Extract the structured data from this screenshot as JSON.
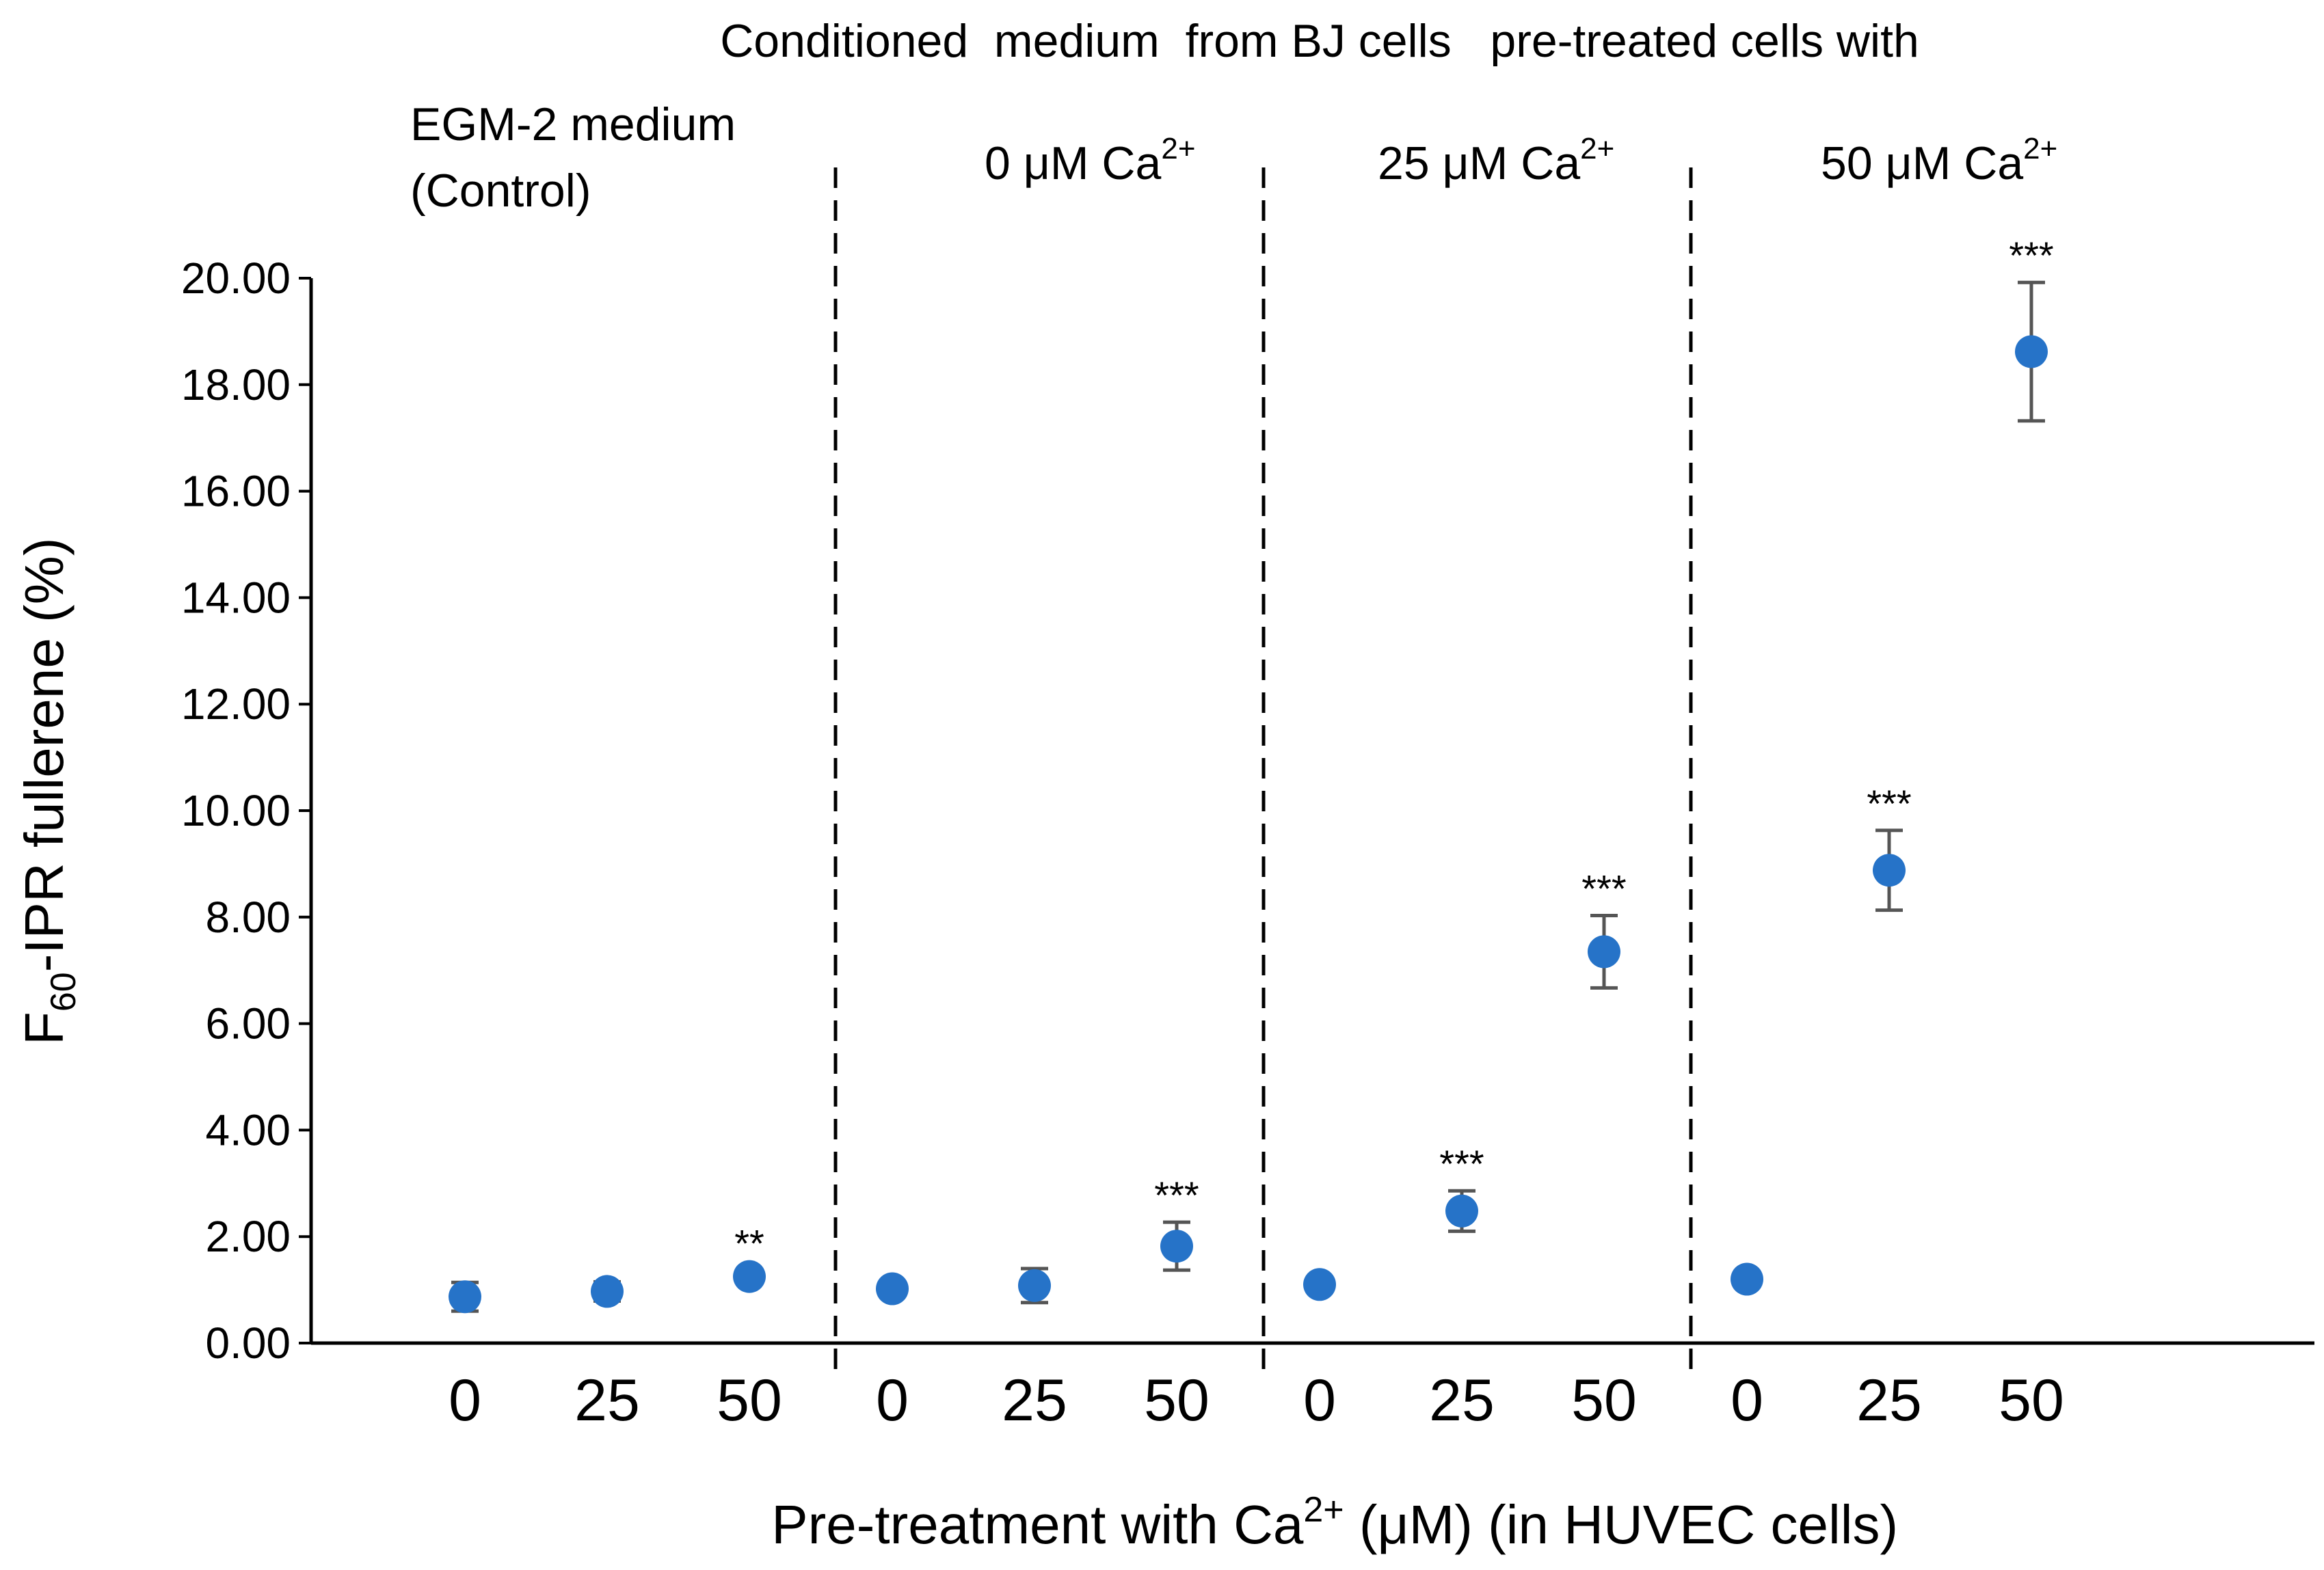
{
  "chart_data": {
    "type": "scatter",
    "title": "",
    "header_label": "Conditioned  medium  from BJ cells   pre-treated cells with",
    "xlabel": {
      "prefix": "Pre-treatment with Ca",
      "sup": "2+",
      "suffix": " (μM) (in HUVEC cells)"
    },
    "ylabel": {
      "main": "F",
      "sub": "60",
      "rest": "-IPR fullerene (%)"
    },
    "ylim": [
      0,
      20
    ],
    "yticks": [
      "0.00",
      "2.00",
      "4.00",
      "6.00",
      "8.00",
      "10.00",
      "12.00",
      "14.00",
      "16.00",
      "18.00",
      "20.00"
    ],
    "grid": false,
    "point_color": "#2673c8",
    "error_color": "#555555",
    "groups": [
      {
        "label_lines": [
          "EGM-2 medium",
          "(Control)"
        ],
        "label_sup": "",
        "x_labels": [
          "0",
          "25",
          "50"
        ],
        "values": [
          0.87,
          0.97,
          1.25
        ],
        "errors": [
          0.27,
          0.18,
          0.12
        ],
        "significance": [
          "",
          "",
          "**"
        ]
      },
      {
        "label_lines": [
          "0 μM  Ca"
        ],
        "label_sup": "2+",
        "x_labels": [
          "0",
          "25",
          "50"
        ],
        "values": [
          1.02,
          1.08,
          1.82
        ],
        "errors": [
          0.12,
          0.32,
          0.45
        ],
        "significance": [
          "",
          "",
          "***"
        ]
      },
      {
        "label_lines": [
          "25 μM  Ca"
        ],
        "label_sup": "2+",
        "x_labels": [
          "0",
          "25",
          "50"
        ],
        "values": [
          1.1,
          2.48,
          7.35
        ],
        "errors": [
          0.1,
          0.38,
          0.68
        ],
        "significance": [
          "",
          "***",
          "***"
        ]
      },
      {
        "label_lines": [
          "50 μM  Ca"
        ],
        "label_sup": "2+",
        "x_labels": [
          "0",
          "25",
          "50"
        ],
        "values": [
          1.2,
          8.88,
          18.62
        ],
        "errors": [
          0.1,
          0.75,
          1.3
        ],
        "significance": [
          "",
          "***",
          "***"
        ]
      }
    ]
  }
}
